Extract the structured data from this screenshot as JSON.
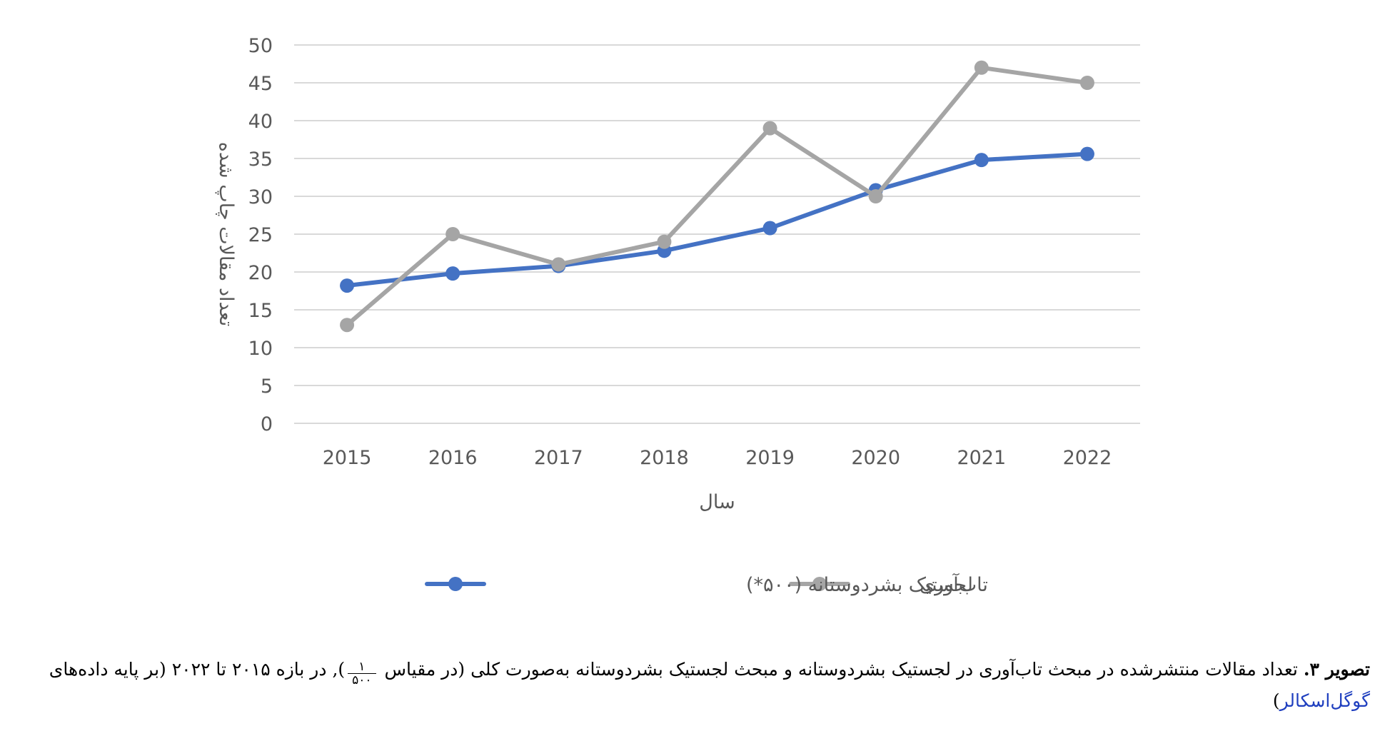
{
  "chart_data": {
    "type": "line",
    "categories": [
      "2015",
      "2016",
      "2017",
      "2018",
      "2019",
      "2020",
      "2021",
      "2022"
    ],
    "series": [
      {
        "name": "لجستیک بشردوستانه (۵۰۰*)",
        "color": "#4472C4",
        "values": [
          18.2,
          19.8,
          20.8,
          22.8,
          25.8,
          30.8,
          34.8,
          35.6
        ]
      },
      {
        "name": "تاب‌آوری",
        "color": "#A5A5A5",
        "values": [
          13,
          25,
          21,
          24,
          39,
          30,
          47,
          45
        ]
      }
    ],
    "xlabel": "سال",
    "ylabel": "تعداد مقالات چاپ شده",
    "ylim": [
      0,
      50
    ],
    "yticks": [
      "0",
      "5",
      "10",
      "15",
      "20",
      "25",
      "30",
      "35",
      "40",
      "45",
      "50"
    ],
    "grid": true,
    "legend": "bottom"
  },
  "caption": {
    "label": "تصویر ۳.",
    "text_before": "تعداد مقالات منتشرشده در مبحث تاب‌آوری در لجستیک بشردوستانه و مبحث لجستیک بشردوستانه به‌صورت کلی (در مقیاس",
    "frac_num": "۱",
    "frac_den": "۵۰۰",
    "text_after": "), در بازه ۲۰۱۵ تا ۲۰۲۲ (بر پایه داده‌های",
    "link": "گوگل‌اسکالر",
    "close": ")"
  }
}
